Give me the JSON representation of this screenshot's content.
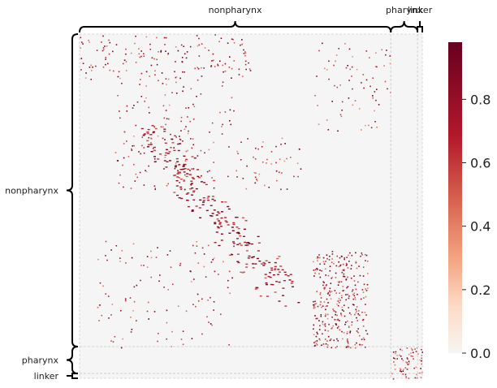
{
  "chart_data": {
    "type": "heatmap",
    "title": "",
    "xlabel": "",
    "ylabel": "",
    "groups": [
      {
        "name": "nonpharynx",
        "fraction": 0.908
      },
      {
        "name": "pharynx",
        "fraction": 0.078
      },
      {
        "name": "linker",
        "fraction": 0.014
      }
    ],
    "colorbar": {
      "ticks": [
        0.0,
        0.2,
        0.4,
        0.6,
        0.8
      ],
      "tick_labels": [
        "0.0",
        "0.2",
        "0.4",
        "0.6",
        "0.8"
      ],
      "range": [
        0.0,
        0.98
      ],
      "colormap": "Reds",
      "low_color": "#f7f4f2",
      "high_color": "#67001f"
    },
    "background_color": "#f5f5f5",
    "grid": false,
    "dense_blocks": [
      {
        "row": [
          0.0,
          0.13
        ],
        "col": [
          0.0,
          0.5
        ],
        "density": 0.1
      },
      {
        "row": [
          0.13,
          0.45
        ],
        "col": [
          0.1,
          0.45
        ],
        "density": 0.06
      },
      {
        "row": [
          0.3,
          0.45
        ],
        "col": [
          0.45,
          0.65
        ],
        "density": 0.07
      },
      {
        "row": [
          0.02,
          0.28
        ],
        "col": [
          0.68,
          0.91
        ],
        "density": 0.05
      },
      {
        "row": [
          0.63,
          0.91
        ],
        "col": [
          0.68,
          0.84
        ],
        "density": 0.3
      },
      {
        "row": [
          0.6,
          0.91
        ],
        "col": [
          0.05,
          0.45
        ],
        "density": 0.04
      },
      {
        "row": [
          0.91,
          1.0
        ],
        "col": [
          0.91,
          1.0
        ],
        "density": 0.35
      }
    ]
  }
}
